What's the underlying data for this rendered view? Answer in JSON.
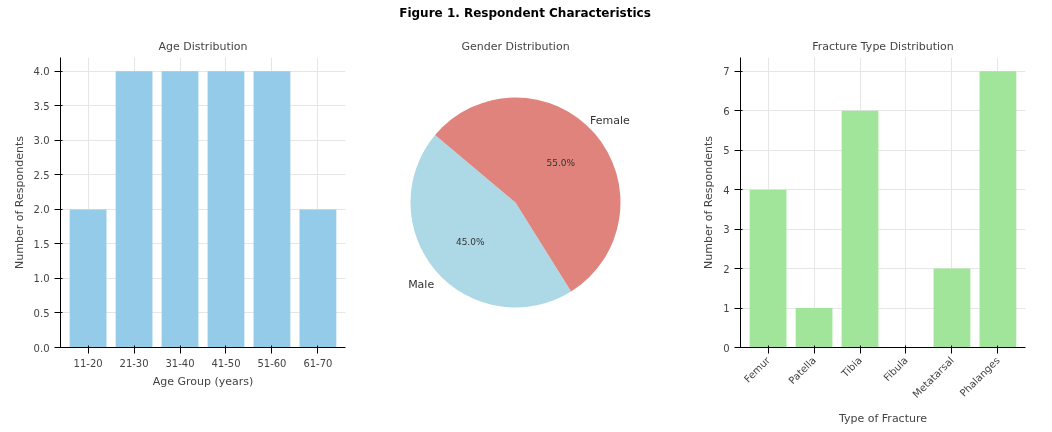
{
  "chart_data": [
    {
      "type": "bar",
      "title": "Age Distribution",
      "xlabel": "Age Group (years)",
      "ylabel": "Number of Respondents",
      "annotations": [
        "Figure 1. Respondent Characteristics"
      ],
      "categories": [
        "11-20",
        "21-30",
        "31-40",
        "41-50",
        "51-60",
        "61-70"
      ],
      "values": [
        2,
        4,
        4,
        4,
        4,
        2
      ],
      "color": "#93cbe9",
      "ylim": [
        0,
        4.2
      ],
      "yticks": [
        {
          "value": 0,
          "label": "0.0"
        },
        {
          "value": 0.5,
          "label": "0.5"
        },
        {
          "value": 1,
          "label": "1.0"
        },
        {
          "value": 1.5,
          "label": "1.5"
        },
        {
          "value": 2,
          "label": "2.0"
        },
        {
          "value": 2.5,
          "label": "2.5"
        },
        {
          "value": 3,
          "label": "3.0"
        },
        {
          "value": 3.5,
          "label": "3.5"
        },
        {
          "value": 4,
          "label": "4.0"
        }
      ],
      "grid": true
    },
    {
      "type": "pie",
      "title": "Gender Distribution",
      "categories": [
        "Male",
        "Female"
      ],
      "values": [
        45,
        55
      ],
      "colors": [
        "#add8e6",
        "#e0837d"
      ],
      "value_labels": [
        "45.0%",
        "55.0%"
      ]
    },
    {
      "type": "bar",
      "title": "Fracture Type Distribution",
      "xlabel": "Type of Fracture",
      "ylabel": "Number of Respondents",
      "categories": [
        "Femur",
        "Patella",
        "Tibia",
        "Fibula",
        "Metatarsal",
        "Phalanges"
      ],
      "values": [
        4,
        1,
        6,
        0,
        2,
        7
      ],
      "color": "#a1e59a",
      "ylim": [
        0,
        7.35
      ],
      "yticks": [
        0,
        1,
        2,
        3,
        4,
        5,
        6,
        7
      ],
      "grid": true
    }
  ]
}
